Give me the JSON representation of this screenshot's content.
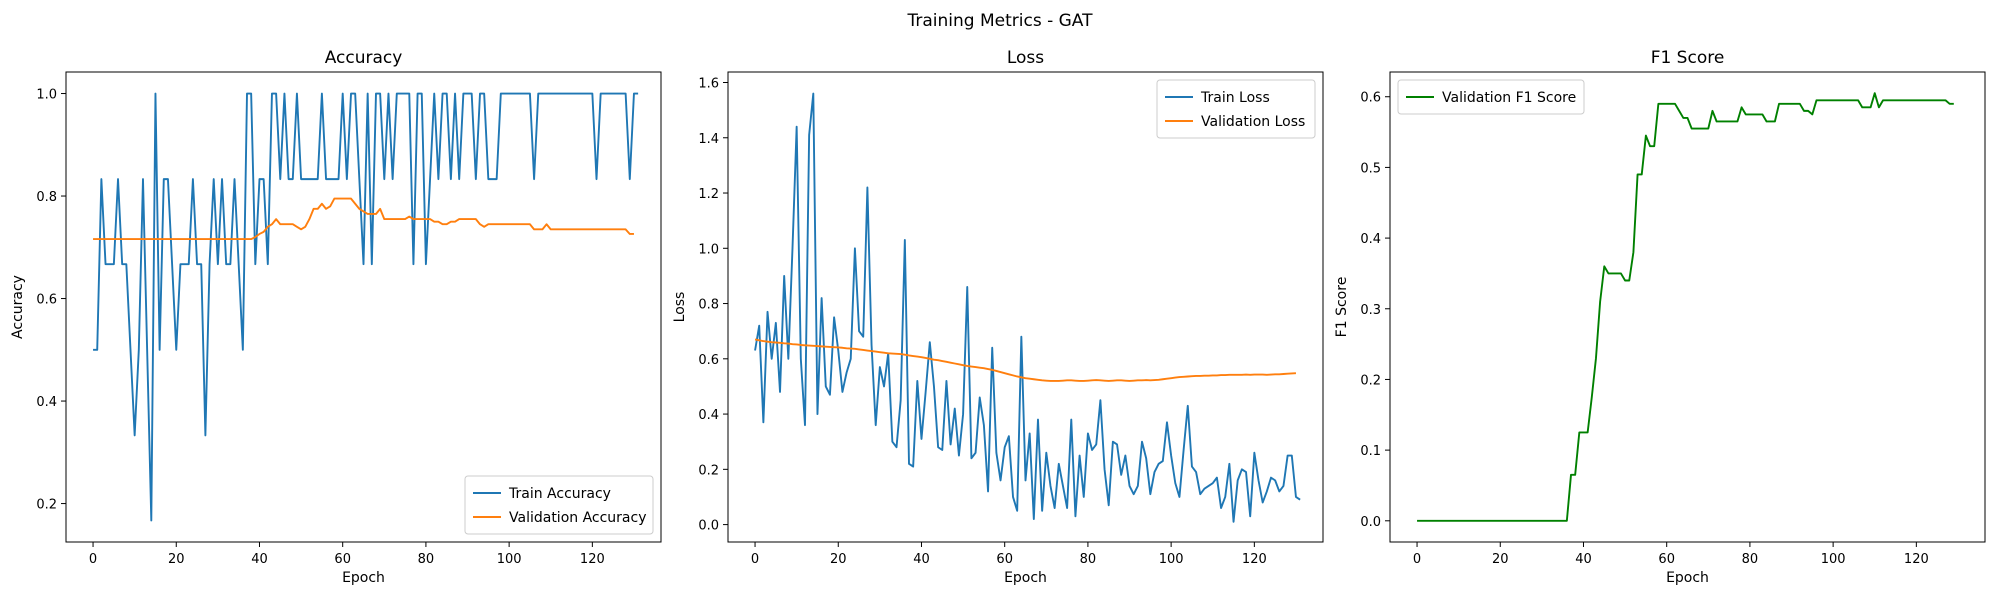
{
  "figure": {
    "suptitle": "Training Metrics - GAT"
  },
  "chart_data": [
    {
      "type": "line",
      "title": "Accuracy",
      "xlabel": "Epoch",
      "ylabel": "Accuracy",
      "xlim": [
        -6.5,
        136.5
      ],
      "ylim": [
        0.125,
        1.042
      ],
      "xticks": [
        0,
        20,
        40,
        60,
        80,
        100,
        120
      ],
      "yticks": [
        0.2,
        0.4,
        0.6,
        0.8,
        1.0
      ],
      "ytick_labels": [
        "0.2",
        "0.4",
        "0.6",
        "0.8",
        "1.0"
      ],
      "legend_loc": "lower-right",
      "series": [
        {
          "name": "Train Accuracy",
          "color": "#1f77b4",
          "values": [
            0.5,
            0.5,
            0.833,
            0.667,
            0.667,
            0.667,
            0.833,
            0.667,
            0.667,
            0.5,
            0.333,
            0.5,
            0.833,
            0.5,
            0.167,
            1.0,
            0.5,
            0.833,
            0.833,
            0.667,
            0.5,
            0.667,
            0.667,
            0.667,
            0.833,
            0.667,
            0.667,
            0.333,
            0.667,
            0.833,
            0.667,
            0.833,
            0.667,
            0.667,
            0.833,
            0.667,
            0.5,
            1.0,
            1.0,
            0.667,
            0.833,
            0.833,
            0.667,
            1.0,
            1.0,
            0.833,
            1.0,
            0.833,
            0.833,
            1.0,
            0.833,
            0.833,
            0.833,
            0.833,
            0.833,
            1.0,
            0.833,
            0.833,
            0.833,
            0.833,
            1.0,
            0.833,
            1.0,
            1.0,
            0.833,
            0.667,
            1.0,
            0.667,
            1.0,
            1.0,
            0.833,
            1.0,
            0.833,
            1.0,
            1.0,
            1.0,
            1.0,
            0.667,
            1.0,
            1.0,
            0.667,
            0.833,
            1.0,
            0.833,
            1.0,
            1.0,
            0.833,
            1.0,
            0.833,
            1.0,
            1.0,
            1.0,
            0.833,
            1.0,
            1.0,
            0.833,
            0.833,
            0.833,
            1.0,
            1.0,
            1.0,
            1.0,
            1.0,
            1.0,
            1.0,
            1.0,
            0.833,
            1.0,
            1.0,
            1.0,
            1.0,
            1.0,
            1.0,
            1.0,
            1.0,
            1.0,
            1.0,
            1.0,
            1.0,
            1.0,
            1.0,
            0.833,
            1.0,
            1.0,
            1.0,
            1.0,
            1.0,
            1.0,
            1.0,
            0.833,
            1.0,
            1.0
          ]
        },
        {
          "name": "Validation Accuracy",
          "color": "#ff7f0e",
          "values": [
            0.716,
            0.716,
            0.716,
            0.716,
            0.716,
            0.716,
            0.716,
            0.716,
            0.716,
            0.716,
            0.716,
            0.716,
            0.716,
            0.716,
            0.716,
            0.716,
            0.716,
            0.716,
            0.716,
            0.716,
            0.716,
            0.716,
            0.716,
            0.716,
            0.716,
            0.716,
            0.716,
            0.716,
            0.716,
            0.716,
            0.716,
            0.716,
            0.716,
            0.716,
            0.716,
            0.716,
            0.716,
            0.716,
            0.716,
            0.72,
            0.726,
            0.73,
            0.74,
            0.745,
            0.755,
            0.745,
            0.745,
            0.745,
            0.745,
            0.74,
            0.735,
            0.74,
            0.755,
            0.775,
            0.775,
            0.785,
            0.775,
            0.78,
            0.795,
            0.795,
            0.795,
            0.795,
            0.795,
            0.785,
            0.775,
            0.77,
            0.765,
            0.765,
            0.765,
            0.775,
            0.755,
            0.755,
            0.755,
            0.755,
            0.755,
            0.755,
            0.76,
            0.755,
            0.755,
            0.755,
            0.755,
            0.755,
            0.75,
            0.75,
            0.745,
            0.745,
            0.75,
            0.75,
            0.755,
            0.755,
            0.755,
            0.755,
            0.755,
            0.745,
            0.74,
            0.745,
            0.745,
            0.745,
            0.745,
            0.745,
            0.745,
            0.745,
            0.745,
            0.745,
            0.745,
            0.745,
            0.735,
            0.735,
            0.735,
            0.745,
            0.735,
            0.735,
            0.735,
            0.735,
            0.735,
            0.735,
            0.735,
            0.735,
            0.735,
            0.735,
            0.735,
            0.735,
            0.735,
            0.735,
            0.735,
            0.735,
            0.735,
            0.735,
            0.735,
            0.726,
            0.726
          ]
        }
      ]
    },
    {
      "type": "line",
      "title": "Loss",
      "xlabel": "Epoch",
      "ylabel": "Loss",
      "xlim": [
        -6.5,
        136.5
      ],
      "ylim": [
        -0.063,
        1.638
      ],
      "xticks": [
        0,
        20,
        40,
        60,
        80,
        100,
        120
      ],
      "yticks": [
        0.0,
        0.2,
        0.4,
        0.6,
        0.8,
        1.0,
        1.2,
        1.4,
        1.6
      ],
      "ytick_labels": [
        "0.0",
        "0.2",
        "0.4",
        "0.6",
        "0.8",
        "1.0",
        "1.2",
        "1.4",
        "1.6"
      ],
      "legend_loc": "upper-right",
      "series": [
        {
          "name": "Train Loss",
          "color": "#1f77b4",
          "values": [
            0.63,
            0.72,
            0.37,
            0.77,
            0.6,
            0.73,
            0.48,
            0.9,
            0.6,
            1.0,
            1.44,
            0.6,
            0.36,
            1.41,
            1.56,
            0.4,
            0.82,
            0.5,
            0.47,
            0.75,
            0.63,
            0.48,
            0.55,
            0.6,
            1.0,
            0.7,
            0.68,
            1.22,
            0.65,
            0.36,
            0.57,
            0.5,
            0.62,
            0.3,
            0.28,
            0.45,
            1.03,
            0.22,
            0.21,
            0.52,
            0.31,
            0.48,
            0.66,
            0.5,
            0.28,
            0.27,
            0.52,
            0.29,
            0.42,
            0.25,
            0.4,
            0.86,
            0.24,
            0.26,
            0.46,
            0.36,
            0.12,
            0.64,
            0.26,
            0.16,
            0.28,
            0.32,
            0.1,
            0.05,
            0.68,
            0.16,
            0.33,
            0.02,
            0.38,
            0.05,
            0.26,
            0.14,
            0.06,
            0.22,
            0.14,
            0.06,
            0.38,
            0.03,
            0.25,
            0.1,
            0.33,
            0.27,
            0.29,
            0.45,
            0.2,
            0.07,
            0.3,
            0.29,
            0.18,
            0.25,
            0.14,
            0.11,
            0.14,
            0.3,
            0.24,
            0.11,
            0.19,
            0.22,
            0.23,
            0.37,
            0.25,
            0.15,
            0.1,
            0.27,
            0.43,
            0.21,
            0.19,
            0.11,
            0.13,
            0.14,
            0.15,
            0.17,
            0.06,
            0.1,
            0.22,
            0.01,
            0.16,
            0.2,
            0.19,
            0.03,
            0.26,
            0.16,
            0.08,
            0.12,
            0.17,
            0.16,
            0.12,
            0.14,
            0.25,
            0.25,
            0.1,
            0.09
          ]
        },
        {
          "name": "Validation Loss",
          "color": "#ff7f0e",
          "values": [
            0.67,
            0.667,
            0.664,
            0.662,
            0.66,
            0.659,
            0.658,
            0.656,
            0.655,
            0.653,
            0.652,
            0.65,
            0.649,
            0.648,
            0.647,
            0.646,
            0.645,
            0.644,
            0.643,
            0.642,
            0.641,
            0.64,
            0.638,
            0.637,
            0.636,
            0.634,
            0.632,
            0.63,
            0.628,
            0.626,
            0.624,
            0.622,
            0.62,
            0.619,
            0.618,
            0.617,
            0.615,
            0.612,
            0.61,
            0.608,
            0.606,
            0.603,
            0.6,
            0.597,
            0.595,
            0.592,
            0.589,
            0.586,
            0.583,
            0.58,
            0.577,
            0.574,
            0.572,
            0.57,
            0.568,
            0.566,
            0.563,
            0.56,
            0.556,
            0.552,
            0.548,
            0.544,
            0.54,
            0.536,
            0.533,
            0.53,
            0.528,
            0.526,
            0.524,
            0.522,
            0.521,
            0.52,
            0.52,
            0.52,
            0.521,
            0.522,
            0.522,
            0.521,
            0.52,
            0.52,
            0.521,
            0.522,
            0.523,
            0.522,
            0.521,
            0.52,
            0.521,
            0.522,
            0.522,
            0.521,
            0.52,
            0.521,
            0.522,
            0.522,
            0.523,
            0.522,
            0.523,
            0.524,
            0.526,
            0.528,
            0.53,
            0.532,
            0.534,
            0.535,
            0.536,
            0.537,
            0.538,
            0.538,
            0.539,
            0.539,
            0.54,
            0.54,
            0.541,
            0.541,
            0.542,
            0.542,
            0.542,
            0.542,
            0.543,
            0.542,
            0.543,
            0.543,
            0.543,
            0.542,
            0.543,
            0.544,
            0.544,
            0.545,
            0.546,
            0.547,
            0.548
          ]
        }
      ]
    },
    {
      "type": "line",
      "title": "F1 Score",
      "xlabel": "Epoch",
      "ylabel": "F1 Score",
      "xlim": [
        -6.5,
        136.5
      ],
      "ylim": [
        -0.03,
        0.635
      ],
      "xticks": [
        0,
        20,
        40,
        60,
        80,
        100,
        120
      ],
      "yticks": [
        0.0,
        0.1,
        0.2,
        0.3,
        0.4,
        0.5,
        0.6
      ],
      "ytick_labels": [
        "0.0",
        "0.1",
        "0.2",
        "0.3",
        "0.4",
        "0.5",
        "0.6"
      ],
      "legend_loc": "upper-left",
      "series": [
        {
          "name": "Validation F1 Score",
          "color": "#008000",
          "values": [
            0,
            0,
            0,
            0,
            0,
            0,
            0,
            0,
            0,
            0,
            0,
            0,
            0,
            0,
            0,
            0,
            0,
            0,
            0,
            0,
            0,
            0,
            0,
            0,
            0,
            0,
            0,
            0,
            0,
            0,
            0,
            0,
            0,
            0,
            0,
            0,
            0,
            0.065,
            0.065,
            0.125,
            0.125,
            0.125,
            0.175,
            0.23,
            0.31,
            0.36,
            0.35,
            0.35,
            0.35,
            0.35,
            0.34,
            0.34,
            0.38,
            0.49,
            0.49,
            0.545,
            0.53,
            0.53,
            0.59,
            0.59,
            0.59,
            0.59,
            0.59,
            0.58,
            0.57,
            0.57,
            0.555,
            0.555,
            0.555,
            0.555,
            0.555,
            0.58,
            0.565,
            0.565,
            0.565,
            0.565,
            0.565,
            0.565,
            0.585,
            0.575,
            0.575,
            0.575,
            0.575,
            0.575,
            0.565,
            0.565,
            0.565,
            0.59,
            0.59,
            0.59,
            0.59,
            0.59,
            0.59,
            0.58,
            0.58,
            0.575,
            0.595,
            0.595,
            0.595,
            0.595,
            0.595,
            0.595,
            0.595,
            0.595,
            0.595,
            0.595,
            0.595,
            0.585,
            0.585,
            0.585,
            0.605,
            0.585,
            0.595,
            0.595,
            0.595,
            0.595,
            0.595,
            0.595,
            0.595,
            0.595,
            0.595,
            0.595,
            0.595,
            0.595,
            0.595,
            0.595,
            0.595,
            0.595,
            0.59,
            0.59
          ]
        }
      ]
    }
  ]
}
